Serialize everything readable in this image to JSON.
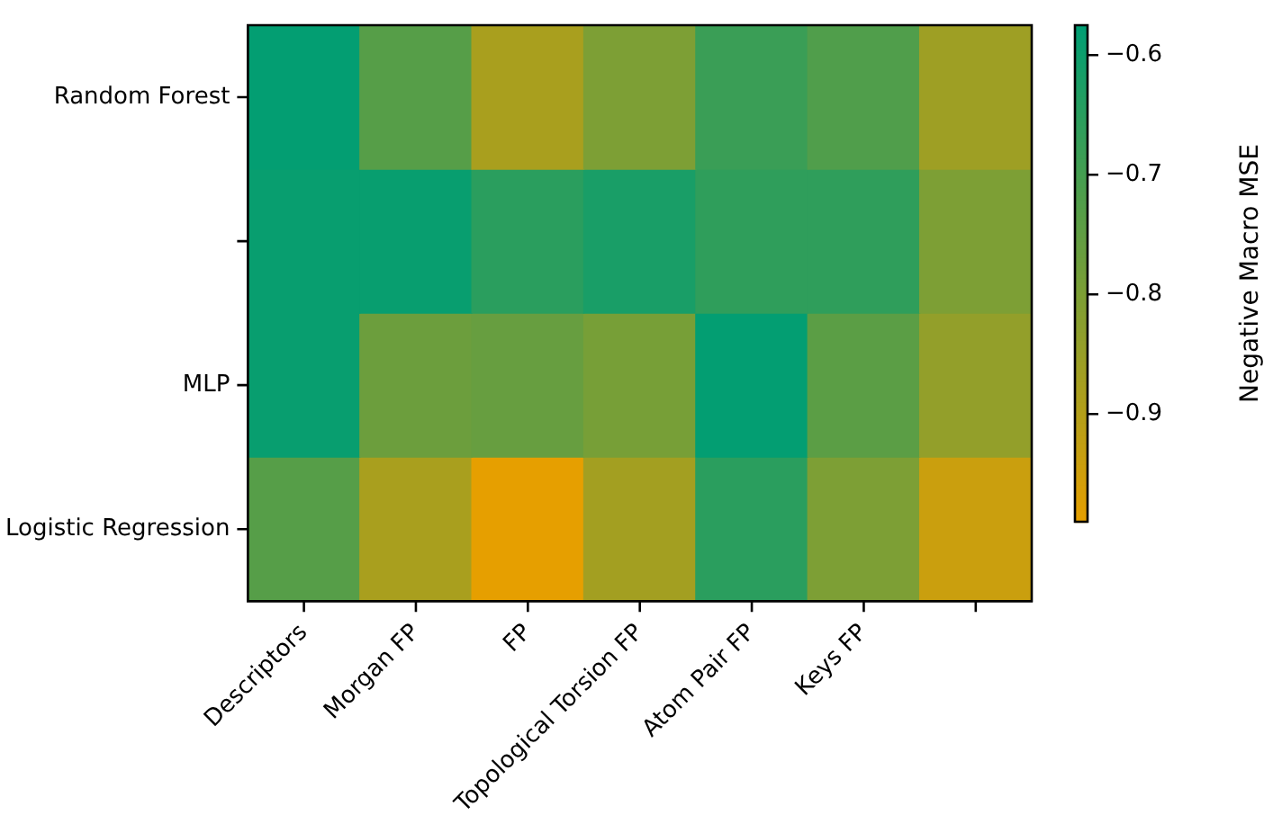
{
  "chart_data": {
    "type": "heatmap",
    "categories": [
      "Descriptors",
      "Morgan FP",
      "FP",
      "Topological Torsion FP",
      "Atom Pair FP",
      "Keys FP",
      null
    ],
    "y_categories": [
      "Random Forest",
      null,
      "MLP",
      "Logistic Regression"
    ],
    "cells": [
      [
        -0.58,
        -0.73,
        -0.88,
        -0.8,
        -0.68,
        -0.72,
        -0.86
      ],
      [
        -0.59,
        -0.59,
        -0.65,
        -0.62,
        -0.66,
        -0.66,
        -0.8
      ],
      [
        -0.59,
        -0.77,
        -0.76,
        -0.79,
        -0.58,
        -0.74,
        -0.84
      ],
      [
        -0.73,
        -0.88,
        -0.99,
        -0.87,
        -0.65,
        -0.8,
        -0.94
      ]
    ],
    "clabel": "Negative Macro MSE",
    "clim": [
      -0.99,
      -0.575
    ],
    "cticks": [
      -0.9,
      -0.8,
      -0.7,
      -0.6
    ]
  }
}
